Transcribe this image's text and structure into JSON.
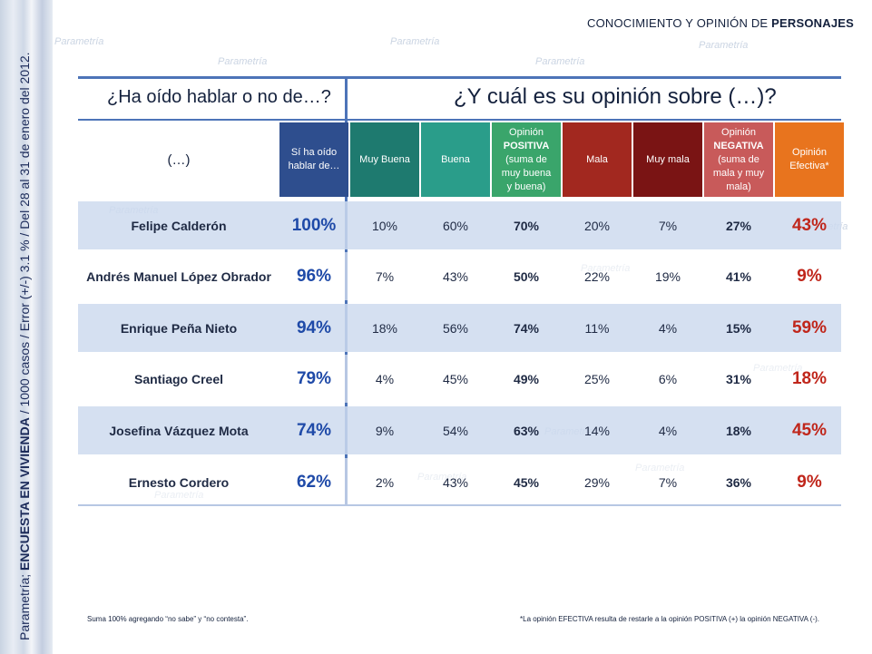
{
  "sidebar": {
    "prefix": "Parametría; ",
    "survey": "ENCUESTA EN VIVIENDA",
    "suffix": " / 1000 casos / Error (+/-) 3.1 % / Del 28 al 31 de enero del 2012."
  },
  "watermark": "Parametría",
  "page_title": {
    "normal": "CONOCIMIENTO Y OPINIÓN DE ",
    "bold": "PERSONAJES"
  },
  "questions": {
    "q1": "¿Ha oído hablar o no de…?",
    "q2": "¿Y cuál es su opinión sobre (…)?"
  },
  "table": {
    "persona_header": "(…)",
    "columns": [
      {
        "id": "aware",
        "lines": [
          "Sí ha oído",
          "hablar de…"
        ],
        "bold_first": false,
        "color": "#2e4e8e"
      },
      {
        "id": "muy_buena",
        "lines": [
          "Muy Buena"
        ],
        "bold_first": false,
        "color": "#1e7a6f"
      },
      {
        "id": "buena",
        "lines": [
          "Buena"
        ],
        "bold_first": false,
        "color": "#2a9d8a"
      },
      {
        "id": "positiva",
        "lines": [
          "Opinión",
          "POSITIVA",
          "(suma de",
          "muy buena",
          "y buena)"
        ],
        "bold_first": true,
        "color": "#3aa56b"
      },
      {
        "id": "mala",
        "lines": [
          "Mala"
        ],
        "bold_first": false,
        "color": "#a2281f"
      },
      {
        "id": "muy_mala",
        "lines": [
          "Muy mala"
        ],
        "bold_first": false,
        "color": "#7a1414"
      },
      {
        "id": "negativa",
        "lines": [
          "Opinión",
          "NEGATIVA",
          "(suma de",
          "mala y muy",
          "mala)"
        ],
        "bold_first": true,
        "color": "#c85a5a"
      },
      {
        "id": "efectiva",
        "lines": [
          "Opinión",
          "Efectiva*"
        ],
        "bold_first": false,
        "color": "#e8741e"
      }
    ],
    "rows": [
      {
        "name": "Felipe Calderón",
        "aware": "100%",
        "muy_buena": "10%",
        "buena": "60%",
        "positiva": "70%",
        "mala": "20%",
        "muy_mala": "7%",
        "negativa": "27%",
        "efectiva": "43%"
      },
      {
        "name": "Andrés Manuel López Obrador",
        "aware": "96%",
        "muy_buena": "7%",
        "buena": "43%",
        "positiva": "50%",
        "mala": "22%",
        "muy_mala": "19%",
        "negativa": "41%",
        "efectiva": "9%"
      },
      {
        "name": "Enrique Peña Nieto",
        "aware": "94%",
        "muy_buena": "18%",
        "buena": "56%",
        "positiva": "74%",
        "mala": "11%",
        "muy_mala": "4%",
        "negativa": "15%",
        "efectiva": "59%"
      },
      {
        "name": "Santiago Creel",
        "aware": "79%",
        "muy_buena": "4%",
        "buena": "45%",
        "positiva": "49%",
        "mala": "25%",
        "muy_mala": "6%",
        "negativa": "31%",
        "efectiva": "18%"
      },
      {
        "name": "Josefina Vázquez Mota",
        "aware": "74%",
        "muy_buena": "9%",
        "buena": "54%",
        "positiva": "63%",
        "mala": "14%",
        "muy_mala": "4%",
        "negativa": "18%",
        "efectiva": "45%"
      },
      {
        "name": "Ernesto Cordero",
        "aware": "62%",
        "muy_buena": "2%",
        "buena": "43%",
        "positiva": "45%",
        "mala": "29%",
        "muy_mala": "7%",
        "negativa": "36%",
        "efectiva": "9%"
      }
    ]
  },
  "footnotes": {
    "left": "Suma 100%  agregando “no sabe” y “no contesta”.",
    "right": "*La opinión EFECTIVA resulta de restarle a la opinión POSITIVA (+) la opinión NEGATIVA (-)."
  }
}
